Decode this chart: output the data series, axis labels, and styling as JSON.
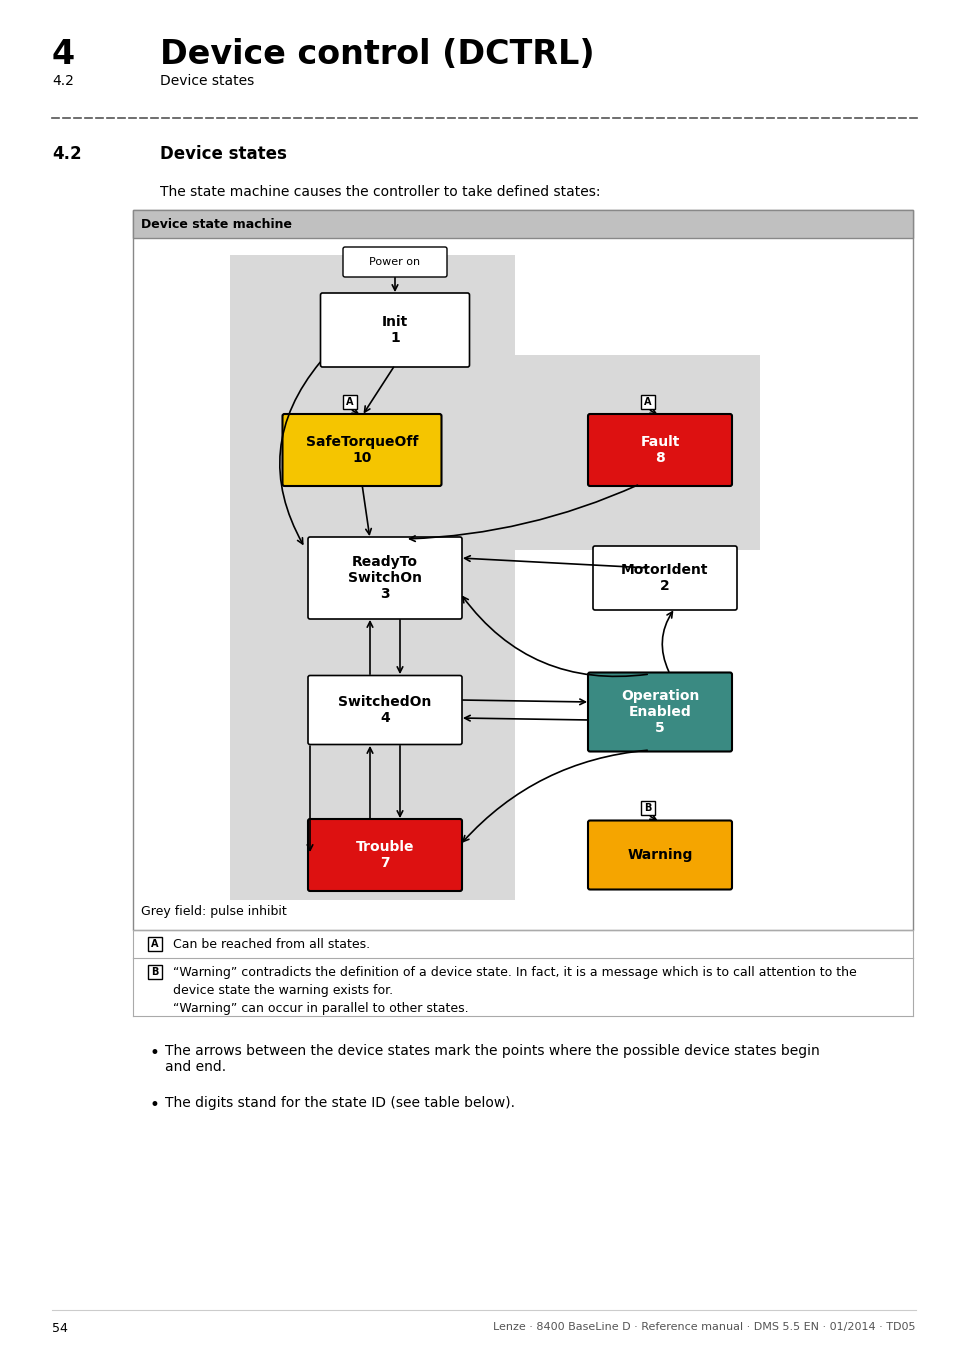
{
  "page_title": "4",
  "page_subtitle": "Device control (DCTRL)",
  "section": "4.2",
  "section_title": "Device states",
  "intro_text": "The state machine causes the controller to take defined states:",
  "diagram_title": "Device state machine",
  "note_a": "Can be reached from all states.",
  "note_b_line1": "“Warning” contradicts the definition of a device state. In fact, it is a message which is to call attention to the",
  "note_b_line2": "device state the warning exists for.",
  "note_b_line3": "“Warning” can occur in parallel to other states.",
  "footer_text": "Grey field: pulse inhibit",
  "bullet1": "The arrows between the device states mark the points where the possible device states begin\nand end.",
  "bullet2": "The digits stand for the state ID (see table below).",
  "page_number": "54",
  "footer_right": "Lenze · 8400 BaseLine D · Reference manual · DMS 5.5 EN · 01/2014 · TD05"
}
